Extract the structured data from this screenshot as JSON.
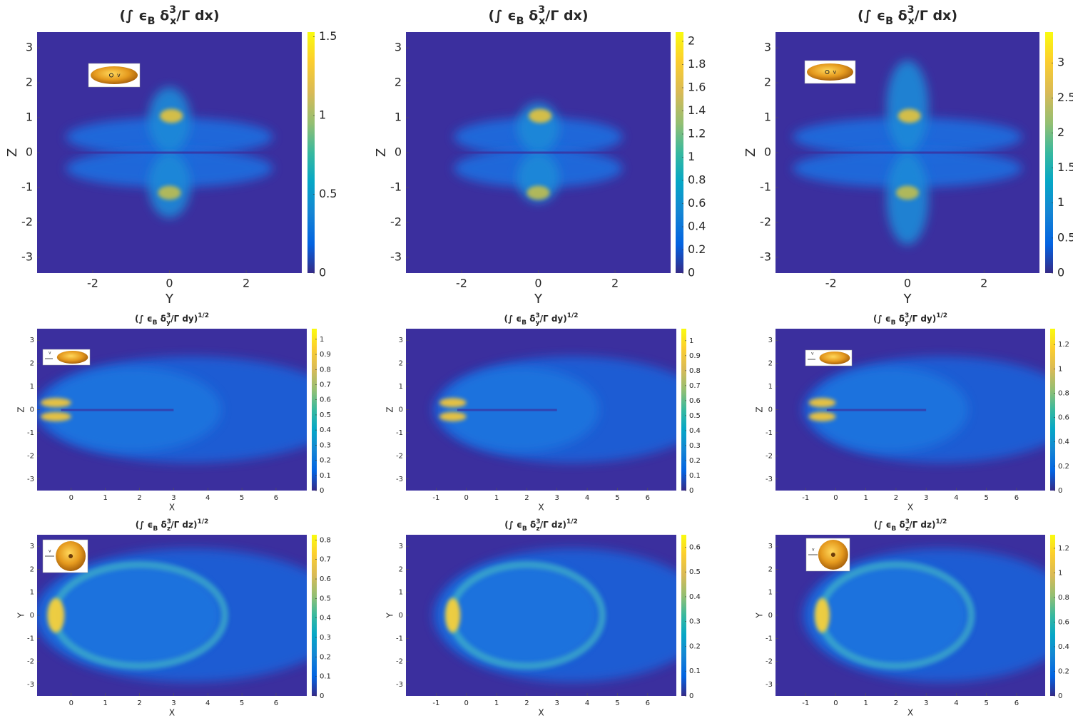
{
  "chart_data": [
    {
      "type": "heatmap",
      "colormap": "parula",
      "title": [
        {
          "text": "(∫ ϵ"
        },
        {
          "text": "B",
          "shift": "sub"
        },
        {
          "text": " δ"
        },
        {
          "text": "3",
          "shift": "sup"
        },
        {
          "text": "x",
          "shift": "sub"
        },
        {
          "text": "/Γ dx)"
        }
      ],
      "xlabel": "Y",
      "ylabel": "Z",
      "xlim": [
        -3.45,
        3.45
      ],
      "ylim": [
        -3.45,
        3.45
      ],
      "xticks": [
        -2,
        0,
        2
      ],
      "yticks": [
        -3,
        -2,
        -1,
        0,
        1,
        2,
        3
      ],
      "clim": [
        0,
        1.53
      ],
      "cticks": [
        0,
        0.5,
        1,
        1.5
      ],
      "inset": {
        "label": "v"
      }
    },
    {
      "type": "heatmap",
      "colormap": "parula",
      "title": [
        {
          "text": "(∫ ϵ"
        },
        {
          "text": "B",
          "shift": "sub"
        },
        {
          "text": " δ"
        },
        {
          "text": "3",
          "shift": "sup"
        },
        {
          "text": "x",
          "shift": "sub"
        },
        {
          "text": "/Γ dx)"
        }
      ],
      "xlabel": "Y",
      "ylabel": "Z",
      "xlim": [
        -3.45,
        3.45
      ],
      "ylim": [
        -3.45,
        3.45
      ],
      "xticks": [
        -2,
        0,
        2
      ],
      "yticks": [
        -3,
        -2,
        -1,
        0,
        1,
        2,
        3
      ],
      "clim": [
        0,
        2.08
      ],
      "cticks": [
        0,
        0.2,
        0.4,
        0.6,
        0.8,
        1,
        1.2,
        1.4,
        1.6,
        1.8,
        2
      ]
    },
    {
      "type": "heatmap",
      "colormap": "parula",
      "title": [
        {
          "text": "(∫ ϵ"
        },
        {
          "text": "B",
          "shift": "sub"
        },
        {
          "text": " δ"
        },
        {
          "text": "3",
          "shift": "sup"
        },
        {
          "text": "x",
          "shift": "sub"
        },
        {
          "text": "/Γ dx)"
        }
      ],
      "xlabel": "Y",
      "ylabel": "Z",
      "xlim": [
        -3.45,
        3.45
      ],
      "ylim": [
        -3.45,
        3.45
      ],
      "xticks": [
        -2,
        0,
        2
      ],
      "yticks": [
        -3,
        -2,
        -1,
        0,
        1,
        2,
        3
      ],
      "clim": [
        0,
        3.44
      ],
      "cticks": [
        0,
        0.5,
        1,
        1.5,
        2,
        2.5,
        3
      ],
      "inset": {
        "label": "v"
      }
    },
    {
      "type": "heatmap",
      "colormap": "parula",
      "title": [
        {
          "text": "(∫ ϵ"
        },
        {
          "text": "B",
          "shift": "sub"
        },
        {
          "text": " δ"
        },
        {
          "text": "3",
          "shift": "sup"
        },
        {
          "text": "y",
          "shift": "sub"
        },
        {
          "text": "/Γ dy)"
        },
        {
          "text": "1/2",
          "shift": "sup"
        }
      ],
      "xlabel": "X",
      "ylabel": "Z",
      "xlim": [
        -1,
        6.9
      ],
      "ylim": [
        -3.5,
        3.5
      ],
      "xticks": [
        0,
        1,
        2,
        3,
        4,
        5,
        6
      ],
      "yticks": [
        -3,
        -2,
        -1,
        0,
        1,
        2,
        3
      ],
      "clim": [
        0,
        1.07
      ],
      "cticks": [
        0,
        0.1,
        0.2,
        0.3,
        0.4,
        0.5,
        0.6,
        0.7,
        0.8,
        0.9,
        1
      ],
      "inset": {
        "label": "v"
      }
    },
    {
      "type": "heatmap",
      "colormap": "parula",
      "title": [
        {
          "text": "(∫ ϵ"
        },
        {
          "text": "B",
          "shift": "sub"
        },
        {
          "text": " δ"
        },
        {
          "text": "3",
          "shift": "sup"
        },
        {
          "text": "y",
          "shift": "sub"
        },
        {
          "text": "/Γ dy)"
        },
        {
          "text": "1/2",
          "shift": "sup"
        }
      ],
      "xlabel": "X",
      "ylabel": "Z",
      "xlim": [
        -2,
        6.95
      ],
      "ylim": [
        -3.5,
        3.5
      ],
      "xticks": [
        -1,
        0,
        1,
        2,
        3,
        4,
        5,
        6
      ],
      "yticks": [
        -3,
        -2,
        -1,
        0,
        1,
        2,
        3
      ],
      "clim": [
        0,
        1.08
      ],
      "cticks": [
        0,
        0.1,
        0.2,
        0.3,
        0.4,
        0.5,
        0.6,
        0.7,
        0.8,
        0.9,
        1
      ]
    },
    {
      "type": "heatmap",
      "colormap": "parula",
      "title": [
        {
          "text": "(∫ ϵ"
        },
        {
          "text": "B",
          "shift": "sub"
        },
        {
          "text": " δ"
        },
        {
          "text": "3",
          "shift": "sup"
        },
        {
          "text": "y",
          "shift": "sub"
        },
        {
          "text": "/Γ dy)"
        },
        {
          "text": "1/2",
          "shift": "sup"
        }
      ],
      "xlabel": "X",
      "ylabel": "Z",
      "xlim": [
        -2,
        6.95
      ],
      "ylim": [
        -3.5,
        3.5
      ],
      "xticks": [
        -1,
        0,
        1,
        2,
        3,
        4,
        5,
        6
      ],
      "yticks": [
        -3,
        -2,
        -1,
        0,
        1,
        2,
        3
      ],
      "clim": [
        0,
        1.33
      ],
      "cticks": [
        0,
        0.2,
        0.4,
        0.6,
        0.8,
        1,
        1.2
      ],
      "inset": {
        "label": "v"
      }
    },
    {
      "type": "heatmap",
      "colormap": "parula",
      "title": [
        {
          "text": "(∫ ϵ"
        },
        {
          "text": "B",
          "shift": "sub"
        },
        {
          "text": " δ"
        },
        {
          "text": "3",
          "shift": "sup"
        },
        {
          "text": "z",
          "shift": "sub"
        },
        {
          "text": "/Γ dz)"
        },
        {
          "text": "1/2",
          "shift": "sup"
        }
      ],
      "xlabel": "X",
      "ylabel": "Y",
      "xlim": [
        -1,
        6.9
      ],
      "ylim": [
        -3.5,
        3.5
      ],
      "xticks": [
        0,
        1,
        2,
        3,
        4,
        5,
        6
      ],
      "yticks": [
        -3,
        -2,
        -1,
        0,
        1,
        2,
        3
      ],
      "clim": [
        0,
        0.827
      ],
      "cticks": [
        0,
        0.1,
        0.2,
        0.3,
        0.4,
        0.5,
        0.6,
        0.7,
        0.8
      ],
      "inset": {
        "label": "v"
      }
    },
    {
      "type": "heatmap",
      "colormap": "parula",
      "title": [
        {
          "text": "(∫ ϵ"
        },
        {
          "text": "B",
          "shift": "sub"
        },
        {
          "text": " δ"
        },
        {
          "text": "3",
          "shift": "sup"
        },
        {
          "text": "z",
          "shift": "sub"
        },
        {
          "text": "/Γ dz)"
        },
        {
          "text": "1/2",
          "shift": "sup"
        }
      ],
      "xlabel": "X",
      "ylabel": "Y",
      "xlim": [
        -2,
        6.95
      ],
      "ylim": [
        -3.5,
        3.5
      ],
      "xticks": [
        -1,
        0,
        1,
        2,
        3,
        4,
        5,
        6
      ],
      "yticks": [
        -3,
        -2,
        -1,
        0,
        1,
        2,
        3
      ],
      "clim": [
        0,
        0.65
      ],
      "cticks": [
        0,
        0.1,
        0.2,
        0.3,
        0.4,
        0.5,
        0.6
      ]
    },
    {
      "type": "heatmap",
      "colormap": "parula",
      "title": [
        {
          "text": "(∫ ϵ"
        },
        {
          "text": "B",
          "shift": "sub"
        },
        {
          "text": " δ"
        },
        {
          "text": "3",
          "shift": "sup"
        },
        {
          "text": "z",
          "shift": "sub"
        },
        {
          "text": "/Γ dz)"
        },
        {
          "text": "1/2",
          "shift": "sup"
        }
      ],
      "xlabel": "X",
      "ylabel": "Y",
      "xlim": [
        -2,
        6.95
      ],
      "ylim": [
        -3.5,
        3.5
      ],
      "xticks": [
        -1,
        0,
        1,
        2,
        3,
        4,
        5,
        6
      ],
      "yticks": [
        -3,
        -2,
        -1,
        0,
        1,
        2,
        3
      ],
      "clim": [
        0,
        1.31
      ],
      "cticks": [
        0,
        0.2,
        0.4,
        0.6,
        0.8,
        1,
        1.2
      ],
      "inset": {
        "label": "v"
      }
    }
  ]
}
